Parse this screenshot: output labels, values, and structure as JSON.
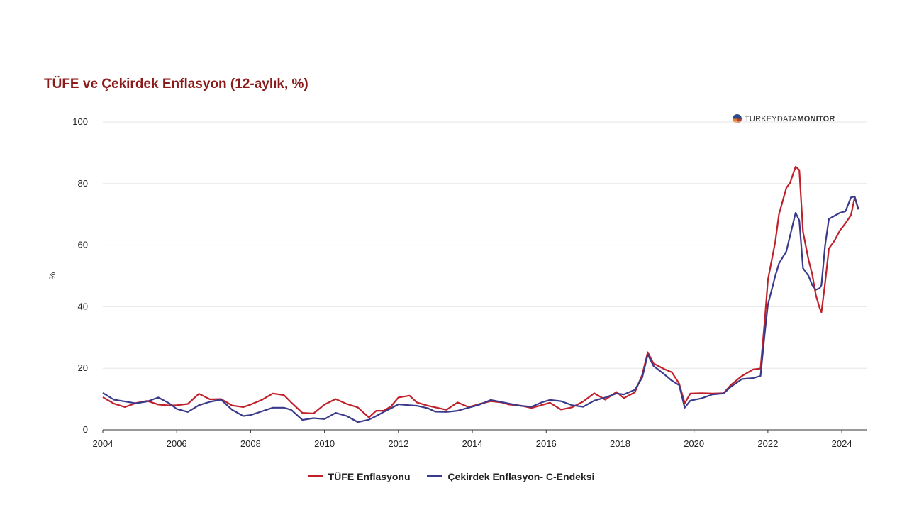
{
  "chart_data": {
    "type": "line",
    "title": "TÜFE ve Çekirdek Enflasyon (12-aylık, %)",
    "ylabel": "%",
    "xlabel": "",
    "ylim": [
      0,
      100
    ],
    "yticks": [
      "0",
      "20",
      "40",
      "60",
      "80",
      "100"
    ],
    "xlim": [
      2004,
      2024.67
    ],
    "xticks": [
      "2004",
      "2006",
      "2008",
      "2010",
      "2012",
      "2014",
      "2016",
      "2018",
      "2020",
      "2022",
      "2024"
    ],
    "grid": "horizontal",
    "legend_position": "bottom",
    "watermark": {
      "light": "TURKEY",
      "light2": "DATA",
      "bold": "MONITOR"
    },
    "series": [
      {
        "name": "TÜFE Enflasyonu",
        "color": "#c0202a",
        "points": [
          [
            2004.0,
            10.6
          ],
          [
            2004.3,
            8.5
          ],
          [
            2004.6,
            7.4
          ],
          [
            2004.9,
            8.7
          ],
          [
            2005.2,
            9.4
          ],
          [
            2005.5,
            8.2
          ],
          [
            2005.8,
            7.9
          ],
          [
            2006.0,
            8.0
          ],
          [
            2006.3,
            8.4
          ],
          [
            2006.6,
            11.7
          ],
          [
            2006.9,
            9.9
          ],
          [
            2007.2,
            10.0
          ],
          [
            2007.5,
            7.9
          ],
          [
            2007.8,
            7.4
          ],
          [
            2008.0,
            8.2
          ],
          [
            2008.3,
            9.7
          ],
          [
            2008.6,
            11.8
          ],
          [
            2008.9,
            11.3
          ],
          [
            2009.1,
            8.9
          ],
          [
            2009.4,
            5.5
          ],
          [
            2009.7,
            5.3
          ],
          [
            2010.0,
            8.2
          ],
          [
            2010.3,
            10.0
          ],
          [
            2010.6,
            8.4
          ],
          [
            2010.9,
            7.3
          ],
          [
            2011.2,
            4.0
          ],
          [
            2011.4,
            6.2
          ],
          [
            2011.6,
            6.2
          ],
          [
            2011.8,
            7.6
          ],
          [
            2012.0,
            10.5
          ],
          [
            2012.3,
            11.1
          ],
          [
            2012.5,
            8.9
          ],
          [
            2012.8,
            7.8
          ],
          [
            2013.0,
            7.3
          ],
          [
            2013.3,
            6.5
          ],
          [
            2013.6,
            8.9
          ],
          [
            2013.9,
            7.4
          ],
          [
            2014.2,
            8.4
          ],
          [
            2014.5,
            9.3
          ],
          [
            2014.8,
            8.9
          ],
          [
            2015.0,
            8.2
          ],
          [
            2015.3,
            7.9
          ],
          [
            2015.6,
            7.1
          ],
          [
            2015.9,
            8.1
          ],
          [
            2016.1,
            8.8
          ],
          [
            2016.4,
            6.6
          ],
          [
            2016.7,
            7.3
          ],
          [
            2017.0,
            9.2
          ],
          [
            2017.3,
            11.9
          ],
          [
            2017.6,
            9.8
          ],
          [
            2017.9,
            12.3
          ],
          [
            2018.1,
            10.3
          ],
          [
            2018.4,
            12.2
          ],
          [
            2018.6,
            17.9
          ],
          [
            2018.75,
            25.2
          ],
          [
            2018.9,
            21.6
          ],
          [
            2019.2,
            19.7
          ],
          [
            2019.4,
            18.7
          ],
          [
            2019.6,
            15.0
          ],
          [
            2019.75,
            8.6
          ],
          [
            2019.9,
            11.8
          ],
          [
            2020.2,
            11.9
          ],
          [
            2020.5,
            11.8
          ],
          [
            2020.8,
            11.9
          ],
          [
            2021.0,
            14.6
          ],
          [
            2021.3,
            17.5
          ],
          [
            2021.6,
            19.6
          ],
          [
            2021.8,
            19.9
          ],
          [
            2021.92,
            36.1
          ],
          [
            2022.0,
            48.7
          ],
          [
            2022.2,
            61.1
          ],
          [
            2022.3,
            70.0
          ],
          [
            2022.5,
            78.6
          ],
          [
            2022.6,
            80.2
          ],
          [
            2022.75,
            85.5
          ],
          [
            2022.85,
            84.4
          ],
          [
            2022.95,
            64.3
          ],
          [
            2023.1,
            55.2
          ],
          [
            2023.2,
            50.5
          ],
          [
            2023.3,
            43.7
          ],
          [
            2023.4,
            39.6
          ],
          [
            2023.45,
            38.2
          ],
          [
            2023.55,
            47.8
          ],
          [
            2023.65,
            58.9
          ],
          [
            2023.8,
            61.4
          ],
          [
            2023.95,
            64.8
          ],
          [
            2024.1,
            67.1
          ],
          [
            2024.25,
            69.8
          ],
          [
            2024.35,
            75.5
          ],
          [
            2024.45,
            71.6
          ]
        ]
      },
      {
        "name": "Çekirdek Enflasyon- C-Endeksi",
        "color": "#3a3a8c",
        "points": [
          [
            2004.0,
            12.0
          ],
          [
            2004.3,
            9.8
          ],
          [
            2004.6,
            9.2
          ],
          [
            2004.9,
            8.6
          ],
          [
            2005.2,
            9.2
          ],
          [
            2005.5,
            10.5
          ],
          [
            2005.8,
            8.6
          ],
          [
            2006.0,
            6.8
          ],
          [
            2006.3,
            5.8
          ],
          [
            2006.6,
            8.0
          ],
          [
            2006.9,
            9.1
          ],
          [
            2007.2,
            9.8
          ],
          [
            2007.5,
            6.5
          ],
          [
            2007.8,
            4.5
          ],
          [
            2008.0,
            4.8
          ],
          [
            2008.3,
            6.0
          ],
          [
            2008.6,
            7.2
          ],
          [
            2008.9,
            7.2
          ],
          [
            2009.1,
            6.5
          ],
          [
            2009.4,
            3.2
          ],
          [
            2009.7,
            3.8
          ],
          [
            2010.0,
            3.5
          ],
          [
            2010.3,
            5.5
          ],
          [
            2010.6,
            4.5
          ],
          [
            2010.9,
            2.5
          ],
          [
            2011.2,
            3.3
          ],
          [
            2011.4,
            4.5
          ],
          [
            2011.6,
            5.8
          ],
          [
            2011.8,
            7.0
          ],
          [
            2012.0,
            8.3
          ],
          [
            2012.3,
            8.0
          ],
          [
            2012.5,
            7.8
          ],
          [
            2012.8,
            7.0
          ],
          [
            2013.0,
            5.9
          ],
          [
            2013.3,
            5.8
          ],
          [
            2013.6,
            6.2
          ],
          [
            2013.9,
            7.2
          ],
          [
            2014.2,
            8.2
          ],
          [
            2014.5,
            9.7
          ],
          [
            2014.8,
            9.0
          ],
          [
            2015.0,
            8.5
          ],
          [
            2015.3,
            7.8
          ],
          [
            2015.6,
            7.5
          ],
          [
            2015.9,
            9.0
          ],
          [
            2016.1,
            9.7
          ],
          [
            2016.4,
            9.3
          ],
          [
            2016.7,
            8.0
          ],
          [
            2017.0,
            7.5
          ],
          [
            2017.3,
            9.5
          ],
          [
            2017.6,
            10.5
          ],
          [
            2017.9,
            11.8
          ],
          [
            2018.1,
            11.5
          ],
          [
            2018.4,
            13.0
          ],
          [
            2018.6,
            17.0
          ],
          [
            2018.75,
            24.5
          ],
          [
            2018.9,
            20.8
          ],
          [
            2019.2,
            18.0
          ],
          [
            2019.4,
            16.0
          ],
          [
            2019.6,
            14.5
          ],
          [
            2019.75,
            7.2
          ],
          [
            2019.9,
            9.5
          ],
          [
            2020.2,
            10.2
          ],
          [
            2020.5,
            11.5
          ],
          [
            2020.8,
            11.8
          ],
          [
            2021.0,
            14.0
          ],
          [
            2021.3,
            16.5
          ],
          [
            2021.6,
            16.8
          ],
          [
            2021.8,
            17.5
          ],
          [
            2021.92,
            31.9
          ],
          [
            2022.0,
            40.7
          ],
          [
            2022.2,
            50.0
          ],
          [
            2022.3,
            54.0
          ],
          [
            2022.5,
            58.0
          ],
          [
            2022.6,
            63.0
          ],
          [
            2022.75,
            70.5
          ],
          [
            2022.85,
            68.0
          ],
          [
            2022.95,
            52.5
          ],
          [
            2023.1,
            50.0
          ],
          [
            2023.2,
            47.0
          ],
          [
            2023.3,
            45.5
          ],
          [
            2023.4,
            46.0
          ],
          [
            2023.45,
            47.0
          ],
          [
            2023.55,
            60.0
          ],
          [
            2023.65,
            68.5
          ],
          [
            2023.8,
            69.5
          ],
          [
            2023.95,
            70.5
          ],
          [
            2024.1,
            71.0
          ],
          [
            2024.25,
            75.5
          ],
          [
            2024.35,
            75.8
          ],
          [
            2024.45,
            71.7
          ]
        ]
      }
    ]
  }
}
